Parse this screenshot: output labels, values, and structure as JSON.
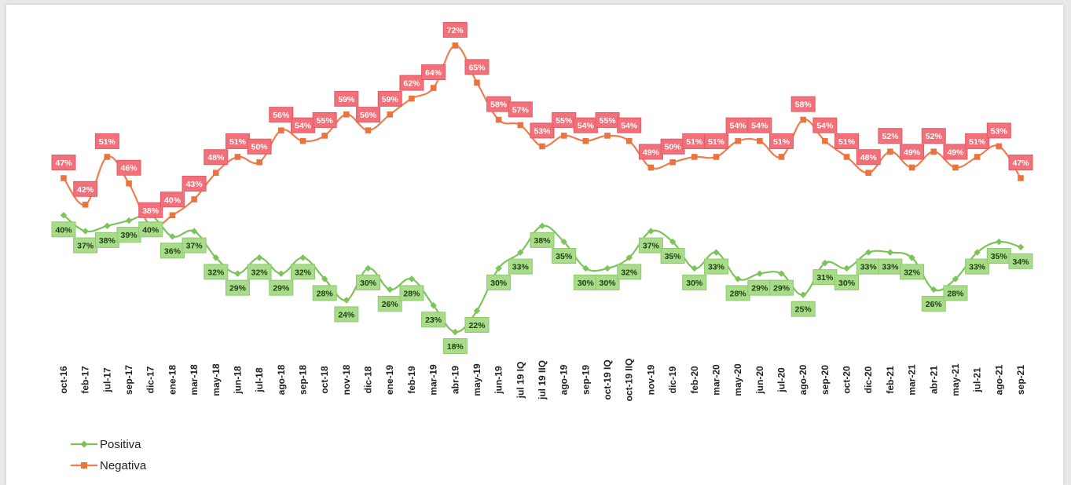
{
  "chart_data": {
    "type": "line",
    "categories": [
      "oct-16",
      "feb-17",
      "jul-17",
      "sep-17",
      "dic-17",
      "ene-18",
      "mar-18",
      "may-18",
      "jun-18",
      "jul-18",
      "ago-18",
      "sep-18",
      "oct-18",
      "nov-18",
      "dic-18",
      "ene-19",
      "feb-19",
      "mar-19",
      "abr-19",
      "may-19",
      "jun-19",
      "jul 19 IQ",
      "jul 19 IIQ",
      "ago-19",
      "sep-19",
      "oct-19 IQ",
      "oct-19 IIQ",
      "nov-19",
      "dic-19",
      "feb-20",
      "mar-20",
      "may-20",
      "jun-20",
      "jul-20",
      "ago-20",
      "sep-20",
      "oct-20",
      "dic-20",
      "feb-21",
      "mar-21",
      "abr-21",
      "may-21",
      "jul-21",
      "ago-21",
      "sep-21"
    ],
    "series": [
      {
        "name": "Positiva",
        "color": "#7cc35a",
        "values": [
          40,
          37,
          38,
          39,
          40,
          36,
          37,
          32,
          29,
          32,
          29,
          32,
          28,
          24,
          30,
          26,
          28,
          23,
          18,
          22,
          30,
          33,
          38,
          35,
          30,
          30,
          32,
          37,
          35,
          30,
          33,
          28,
          29,
          29,
          25,
          31,
          30,
          33,
          33,
          32,
          26,
          28,
          33,
          35,
          34
        ],
        "labels": [
          "40%",
          "37%",
          "38%",
          "39%",
          "40%",
          "36%",
          "37%",
          "32%",
          "29%",
          "32%",
          "29%",
          "32%",
          "28%",
          "24%",
          "30%",
          "26%",
          "28%",
          "23%",
          "18%",
          "22%",
          "30%",
          "33%",
          "38%",
          "35%",
          "30%",
          "30%",
          "32%",
          "37%",
          "35%",
          "30%",
          "33%",
          "28%",
          "29%",
          "29%",
          "25%",
          "31%",
          "30%",
          "33%",
          "33%",
          "32%",
          "26%",
          "28%",
          "33%",
          "35%",
          "34%"
        ]
      },
      {
        "name": "Negativa",
        "color": "#ee7d4f",
        "values": [
          47,
          42,
          51,
          46,
          38,
          40,
          43,
          48,
          51,
          50,
          56,
          54,
          55,
          59,
          56,
          59,
          62,
          64,
          72,
          65,
          58,
          57,
          53,
          55,
          54,
          55,
          54,
          49,
          50,
          51,
          51,
          54,
          54,
          51,
          58,
          54,
          51,
          48,
          52,
          49,
          52,
          49,
          51,
          53,
          47
        ],
        "labels": [
          "47%",
          "42%",
          "51%",
          "46%",
          "38%",
          "40%",
          "43%",
          "48%",
          "51%",
          "50%",
          "56%",
          "54%",
          "55%",
          "59%",
          "56%",
          "59%",
          "62%",
          "64%",
          "72%",
          "65%",
          "58%",
          "57%",
          "53%",
          "55%",
          "54%",
          "55%",
          "54%",
          "49%",
          "50%",
          "51%",
          "51%",
          "54%",
          "54%",
          "51%",
          "58%",
          "54%",
          "51%",
          "48%",
          "52%",
          "49%",
          "52%",
          "49%",
          "51%",
          "53%",
          "47%"
        ]
      }
    ],
    "legend_position": "bottom-left",
    "grid": false
  }
}
